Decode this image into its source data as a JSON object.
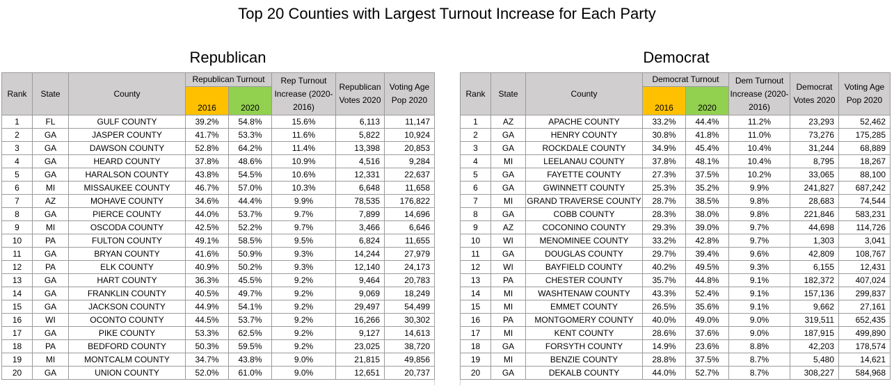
{
  "title": "Top 20 Counties with Largest Turnout Increase for Each Party",
  "republican": {
    "section_title": "Republican",
    "headers": {
      "rank": "Rank",
      "state": "State",
      "county": "County",
      "turnout_group": "Republican Turnout",
      "year1": "2016",
      "year2": "2020",
      "increase": "Rep Turnout Increase (2020-2016)",
      "votes": "Republican Votes 2020",
      "vap": "Voting Age Pop 2020"
    },
    "rows": [
      {
        "rank": "1",
        "state": "FL",
        "county": "GULF COUNTY",
        "t2016": "39.2%",
        "t2020": "54.8%",
        "inc": "15.6%",
        "votes": "6,113",
        "vap": "11,147"
      },
      {
        "rank": "2",
        "state": "GA",
        "county": "JASPER COUNTY",
        "t2016": "41.7%",
        "t2020": "53.3%",
        "inc": "11.6%",
        "votes": "5,822",
        "vap": "10,924"
      },
      {
        "rank": "3",
        "state": "GA",
        "county": "DAWSON COUNTY",
        "t2016": "52.8%",
        "t2020": "64.2%",
        "inc": "11.4%",
        "votes": "13,398",
        "vap": "20,853"
      },
      {
        "rank": "4",
        "state": "GA",
        "county": "HEARD COUNTY",
        "t2016": "37.8%",
        "t2020": "48.6%",
        "inc": "10.9%",
        "votes": "4,516",
        "vap": "9,284"
      },
      {
        "rank": "5",
        "state": "GA",
        "county": "HARALSON COUNTY",
        "t2016": "43.8%",
        "t2020": "54.5%",
        "inc": "10.6%",
        "votes": "12,331",
        "vap": "22,637"
      },
      {
        "rank": "6",
        "state": "MI",
        "county": "MISSAUKEE COUNTY",
        "t2016": "46.7%",
        "t2020": "57.0%",
        "inc": "10.3%",
        "votes": "6,648",
        "vap": "11,658"
      },
      {
        "rank": "7",
        "state": "AZ",
        "county": "MOHAVE COUNTY",
        "t2016": "34.6%",
        "t2020": "44.4%",
        "inc": "9.9%",
        "votes": "78,535",
        "vap": "176,822"
      },
      {
        "rank": "8",
        "state": "GA",
        "county": "PIERCE COUNTY",
        "t2016": "44.0%",
        "t2020": "53.7%",
        "inc": "9.7%",
        "votes": "7,899",
        "vap": "14,696"
      },
      {
        "rank": "9",
        "state": "MI",
        "county": "OSCODA COUNTY",
        "t2016": "42.5%",
        "t2020": "52.2%",
        "inc": "9.7%",
        "votes": "3,466",
        "vap": "6,646"
      },
      {
        "rank": "10",
        "state": "PA",
        "county": "FULTON COUNTY",
        "t2016": "49.1%",
        "t2020": "58.5%",
        "inc": "9.5%",
        "votes": "6,824",
        "vap": "11,655"
      },
      {
        "rank": "11",
        "state": "GA",
        "county": "BRYAN COUNTY",
        "t2016": "41.6%",
        "t2020": "50.9%",
        "inc": "9.3%",
        "votes": "14,244",
        "vap": "27,979"
      },
      {
        "rank": "12",
        "state": "PA",
        "county": "ELK COUNTY",
        "t2016": "40.9%",
        "t2020": "50.2%",
        "inc": "9.3%",
        "votes": "12,140",
        "vap": "24,173"
      },
      {
        "rank": "13",
        "state": "GA",
        "county": "HART COUNTY",
        "t2016": "36.3%",
        "t2020": "45.5%",
        "inc": "9.2%",
        "votes": "9,464",
        "vap": "20,783"
      },
      {
        "rank": "14",
        "state": "GA",
        "county": "FRANKLIN COUNTY",
        "t2016": "40.5%",
        "t2020": "49.7%",
        "inc": "9.2%",
        "votes": "9,069",
        "vap": "18,249"
      },
      {
        "rank": "15",
        "state": "GA",
        "county": "JACKSON COUNTY",
        "t2016": "44.9%",
        "t2020": "54.1%",
        "inc": "9.2%",
        "votes": "29,497",
        "vap": "54,499"
      },
      {
        "rank": "16",
        "state": "WI",
        "county": "OCONTO COUNTY",
        "t2016": "44.5%",
        "t2020": "53.7%",
        "inc": "9.2%",
        "votes": "16,266",
        "vap": "30,302"
      },
      {
        "rank": "17",
        "state": "GA",
        "county": "PIKE COUNTY",
        "t2016": "53.3%",
        "t2020": "62.5%",
        "inc": "9.2%",
        "votes": "9,127",
        "vap": "14,613"
      },
      {
        "rank": "18",
        "state": "PA",
        "county": "BEDFORD COUNTY",
        "t2016": "50.3%",
        "t2020": "59.5%",
        "inc": "9.2%",
        "votes": "23,025",
        "vap": "38,720"
      },
      {
        "rank": "19",
        "state": "MI",
        "county": "MONTCALM COUNTY",
        "t2016": "34.7%",
        "t2020": "43.8%",
        "inc": "9.0%",
        "votes": "21,815",
        "vap": "49,856"
      },
      {
        "rank": "20",
        "state": "GA",
        "county": "UNION COUNTY",
        "t2016": "52.0%",
        "t2020": "61.0%",
        "inc": "9.0%",
        "votes": "12,651",
        "vap": "20,737"
      }
    ]
  },
  "democrat": {
    "section_title": "Democrat",
    "headers": {
      "rank": "Rank",
      "state": "State",
      "county": "County",
      "turnout_group": "Democrat Turnout",
      "year1": "2016",
      "year2": "2020",
      "increase": "Dem Turnout Increase (2020-2016)",
      "votes": "Democrat Votes 2020",
      "vap": "Voting Age Pop 2020"
    },
    "rows": [
      {
        "rank": "1",
        "state": "AZ",
        "county": "APACHE COUNTY",
        "t2016": "33.2%",
        "t2020": "44.4%",
        "inc": "11.2%",
        "votes": "23,293",
        "vap": "52,462"
      },
      {
        "rank": "2",
        "state": "GA",
        "county": "HENRY COUNTY",
        "t2016": "30.8%",
        "t2020": "41.8%",
        "inc": "11.0%",
        "votes": "73,276",
        "vap": "175,285"
      },
      {
        "rank": "3",
        "state": "GA",
        "county": "ROCKDALE COUNTY",
        "t2016": "34.9%",
        "t2020": "45.4%",
        "inc": "10.4%",
        "votes": "31,244",
        "vap": "68,889"
      },
      {
        "rank": "4",
        "state": "MI",
        "county": "LEELANAU COUNTY",
        "t2016": "37.8%",
        "t2020": "48.1%",
        "inc": "10.4%",
        "votes": "8,795",
        "vap": "18,267"
      },
      {
        "rank": "5",
        "state": "GA",
        "county": "FAYETTE COUNTY",
        "t2016": "27.3%",
        "t2020": "37.5%",
        "inc": "10.2%",
        "votes": "33,065",
        "vap": "88,100"
      },
      {
        "rank": "6",
        "state": "GA",
        "county": "GWINNETT COUNTY",
        "t2016": "25.3%",
        "t2020": "35.2%",
        "inc": "9.9%",
        "votes": "241,827",
        "vap": "687,242"
      },
      {
        "rank": "7",
        "state": "MI",
        "county": "GRAND TRAVERSE COUNTY",
        "t2016": "28.7%",
        "t2020": "38.5%",
        "inc": "9.8%",
        "votes": "28,683",
        "vap": "74,544"
      },
      {
        "rank": "8",
        "state": "GA",
        "county": "COBB COUNTY",
        "t2016": "28.3%",
        "t2020": "38.0%",
        "inc": "9.8%",
        "votes": "221,846",
        "vap": "583,231"
      },
      {
        "rank": "9",
        "state": "AZ",
        "county": "COCONINO COUNTY",
        "t2016": "29.3%",
        "t2020": "39.0%",
        "inc": "9.7%",
        "votes": "44,698",
        "vap": "114,726"
      },
      {
        "rank": "10",
        "state": "WI",
        "county": "MENOMINEE COUNTY",
        "t2016": "33.2%",
        "t2020": "42.8%",
        "inc": "9.7%",
        "votes": "1,303",
        "vap": "3,041"
      },
      {
        "rank": "11",
        "state": "GA",
        "county": "DOUGLAS COUNTY",
        "t2016": "29.7%",
        "t2020": "39.4%",
        "inc": "9.6%",
        "votes": "42,809",
        "vap": "108,767"
      },
      {
        "rank": "12",
        "state": "WI",
        "county": "BAYFIELD COUNTY",
        "t2016": "40.2%",
        "t2020": "49.5%",
        "inc": "9.3%",
        "votes": "6,155",
        "vap": "12,431"
      },
      {
        "rank": "13",
        "state": "PA",
        "county": "CHESTER COUNTY",
        "t2016": "35.7%",
        "t2020": "44.8%",
        "inc": "9.1%",
        "votes": "182,372",
        "vap": "407,024"
      },
      {
        "rank": "14",
        "state": "MI",
        "county": "WASHTENAW COUNTY",
        "t2016": "43.3%",
        "t2020": "52.4%",
        "inc": "9.1%",
        "votes": "157,136",
        "vap": "299,837"
      },
      {
        "rank": "15",
        "state": "MI",
        "county": "EMMET COUNTY",
        "t2016": "26.5%",
        "t2020": "35.6%",
        "inc": "9.1%",
        "votes": "9,662",
        "vap": "27,161"
      },
      {
        "rank": "16",
        "state": "PA",
        "county": "MONTGOMERY COUNTY",
        "t2016": "40.0%",
        "t2020": "49.0%",
        "inc": "9.0%",
        "votes": "319,511",
        "vap": "652,435"
      },
      {
        "rank": "17",
        "state": "MI",
        "county": "KENT COUNTY",
        "t2016": "28.6%",
        "t2020": "37.6%",
        "inc": "9.0%",
        "votes": "187,915",
        "vap": "499,890"
      },
      {
        "rank": "18",
        "state": "GA",
        "county": "FORSYTH COUNTY",
        "t2016": "14.9%",
        "t2020": "23.6%",
        "inc": "8.8%",
        "votes": "42,203",
        "vap": "178,574"
      },
      {
        "rank": "19",
        "state": "MI",
        "county": "BENZIE COUNTY",
        "t2016": "28.8%",
        "t2020": "37.5%",
        "inc": "8.7%",
        "votes": "5,480",
        "vap": "14,621"
      },
      {
        "rank": "20",
        "state": "GA",
        "county": "DEKALB COUNTY",
        "t2016": "44.0%",
        "t2020": "52.7%",
        "inc": "8.7%",
        "votes": "308,227",
        "vap": "584,968"
      }
    ]
  }
}
